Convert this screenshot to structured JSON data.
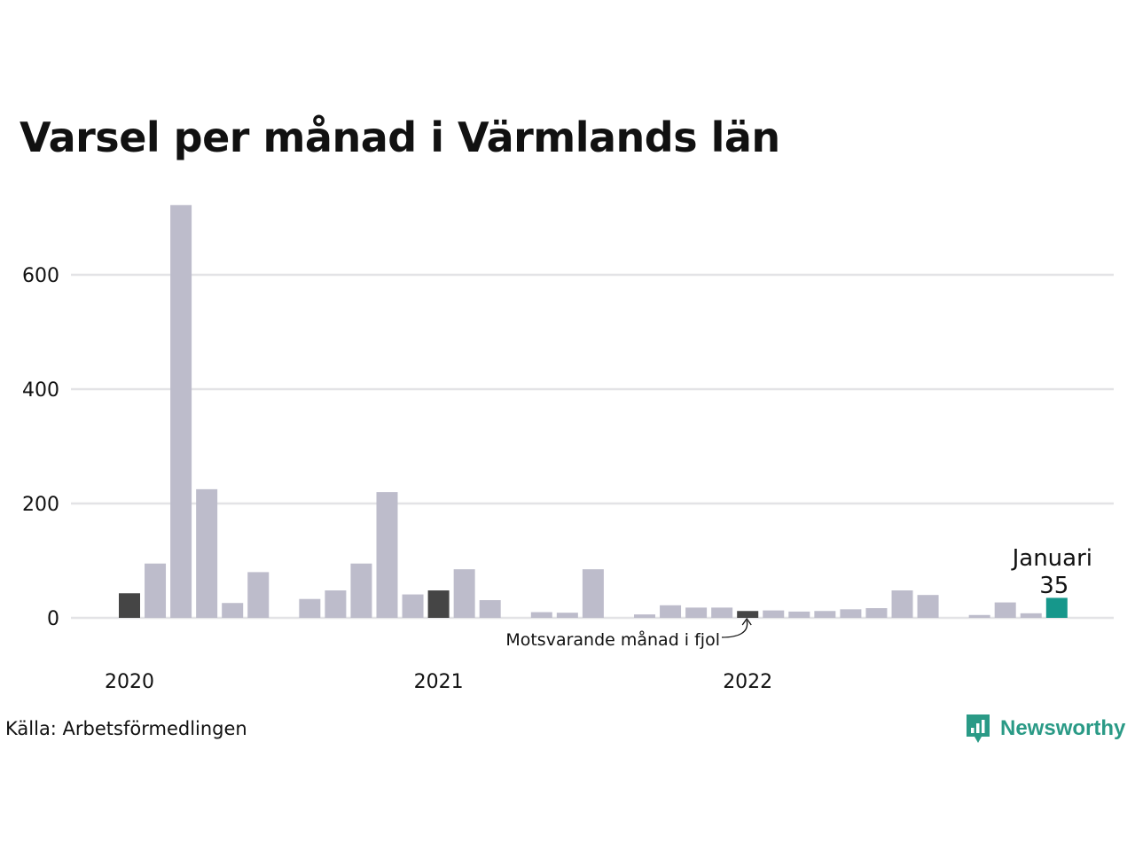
{
  "title": "Varsel per månad i Värmlands län",
  "source": "Källa: Arbetsförmedlingen",
  "brand": {
    "name": "Newsworthy",
    "icon": "newsworthy-logo-icon"
  },
  "colors": {
    "bar_default": "#bdbccb",
    "bar_highlight": "#454545",
    "bar_current": "#16978b",
    "grid": "#e3e3e6",
    "brand": "#2a9a86"
  },
  "chart_data": {
    "type": "bar",
    "ylim": [
      0,
      720
    ],
    "yticks": [
      "0",
      "200",
      "400",
      "600"
    ],
    "x_labels": [
      "2020",
      "2021",
      "2022"
    ],
    "months": [
      "2020-01",
      "2020-02",
      "2020-03",
      "2020-04",
      "2020-05",
      "2020-06",
      "2020-07",
      "2020-08",
      "2020-09",
      "2020-10",
      "2020-11",
      "2020-12",
      "2021-01",
      "2021-02",
      "2021-03",
      "2021-04",
      "2021-05",
      "2021-06",
      "2021-07",
      "2021-08",
      "2021-09",
      "2021-10",
      "2021-11",
      "2021-12",
      "2022-01",
      "2022-02",
      "2022-03",
      "2022-04",
      "2022-05",
      "2022-06",
      "2022-07",
      "2022-08",
      "2022-09",
      "2022-10",
      "2022-11",
      "2022-12",
      "2023-01"
    ],
    "values": [
      43,
      95,
      722,
      225,
      26,
      80,
      0,
      33,
      48,
      95,
      220,
      41,
      48,
      85,
      31,
      0,
      10,
      9,
      85,
      0,
      6,
      22,
      18,
      18,
      12,
      13,
      11,
      12,
      15,
      17,
      48,
      40,
      0,
      5,
      27,
      8,
      35
    ],
    "highlight": [
      "2020-01",
      "2021-01",
      "2022-01"
    ],
    "current": "2023-01",
    "annotations": {
      "previous_year": "Motsvarande månad i fjol",
      "current_month": "Januari",
      "current_value": "35"
    },
    "grid": true,
    "legend": "none"
  }
}
